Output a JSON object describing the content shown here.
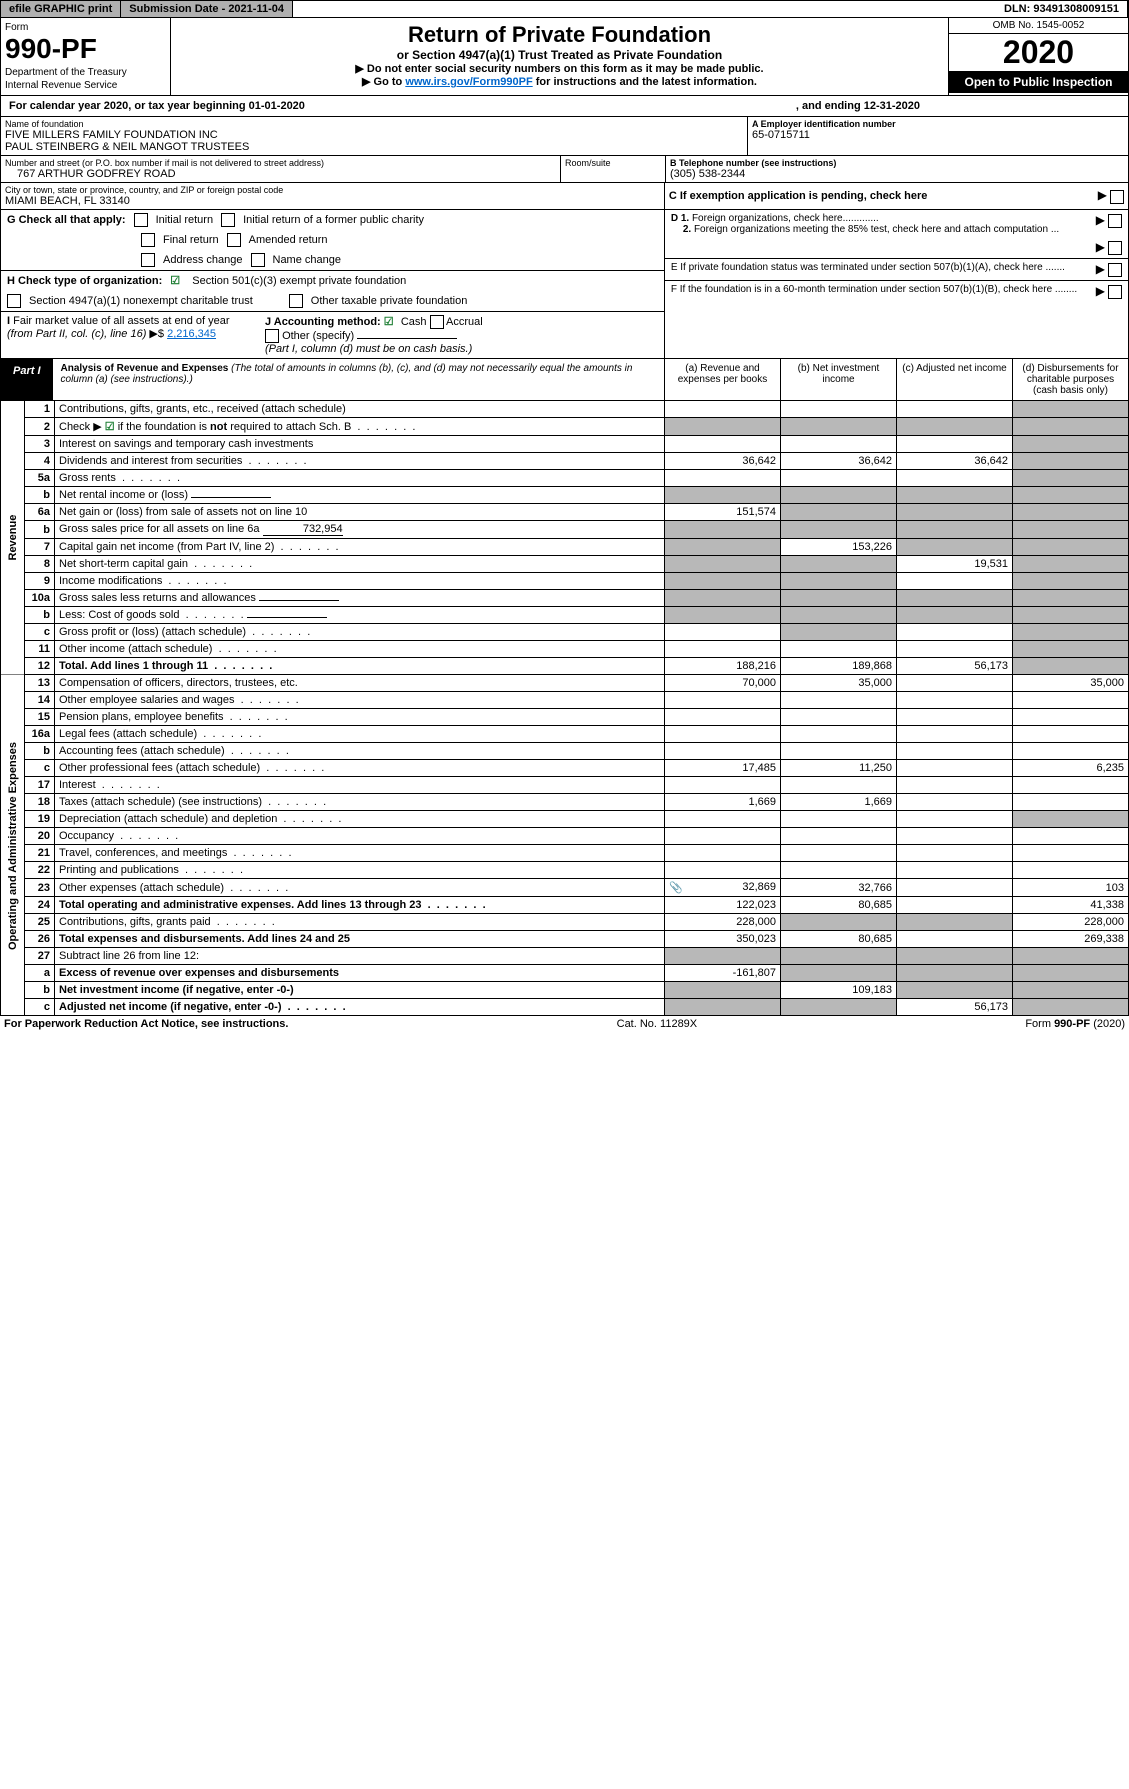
{
  "topbar": {
    "efile": "efile GRAPHIC print",
    "sub_label": "Submission Date - 2021-11-04",
    "dln": "DLN: 93491308009151"
  },
  "header": {
    "form_label": "Form",
    "form_num": "990-PF",
    "dept1": "Department of the Treasury",
    "dept2": "Internal Revenue Service",
    "title": "Return of Private Foundation",
    "subtitle": "or Section 4947(a)(1) Trust Treated as Private Foundation",
    "instruct1": "▶ Do not enter social security numbers on this form as it may be made public.",
    "instruct2a": "▶ Go to ",
    "instruct2_link": "www.irs.gov/Form990PF",
    "instruct2b": " for instructions and the latest information.",
    "omb": "OMB No. 1545-0052",
    "year": "2020",
    "inspection": "Open to Public Inspection"
  },
  "calendar": {
    "text1": "For calendar year 2020, or tax year beginning 01-01-2020",
    "text2": ", and ending 12-31-2020"
  },
  "name": {
    "label": "Name of foundation",
    "line1": "FIVE MILLERS FAMILY FOUNDATION INC",
    "line2": "PAUL STEINBERG & NEIL MANGOT TRUSTEES"
  },
  "ein": {
    "label": "A Employer identification number",
    "value": "65-0715711"
  },
  "addr": {
    "label": "Number and street (or P.O. box number if mail is not delivered to street address)",
    "room_label": "Room/suite",
    "value": "767 ARTHUR GODFREY ROAD"
  },
  "tel": {
    "label": "B Telephone number (see instructions)",
    "value": "(305) 538-2344"
  },
  "city": {
    "label": "City or town, state or province, country, and ZIP or foreign postal code",
    "value": "MIAMI BEACH, FL  33140"
  },
  "pending": {
    "label": "C If exemption application is pending, check here"
  },
  "g": {
    "label": "G Check all that apply:",
    "initial": "Initial return",
    "initial_former": "Initial return of a former public charity",
    "final": "Final return",
    "amended": "Amended return",
    "address": "Address change",
    "name_change": "Name change"
  },
  "h": {
    "label": "H Check type of organization:",
    "s501c3": "Section 501(c)(3) exempt private foundation",
    "s4947": "Section 4947(a)(1) nonexempt charitable trust",
    "other_tax": "Other taxable private foundation"
  },
  "i": {
    "label": "I Fair market value of all assets at end of year (from Part II, col. (c), line 16) ▶$",
    "value": "2,216,345"
  },
  "j": {
    "label": "J Accounting method:",
    "cash": "Cash",
    "accrual": "Accrual",
    "other": "Other (specify)",
    "note": "(Part I, column (d) must be on cash basis.)"
  },
  "d": {
    "d1": "D 1. Foreign organizations, check here.............",
    "d2": "2. Foreign organizations meeting the 85% test, check here and attach computation ..."
  },
  "e": {
    "label": "E  If private foundation status was terminated under section 507(b)(1)(A), check here ......."
  },
  "f": {
    "label": "F  If the foundation is in a 60-month termination under section 507(b)(1)(B), check here ........"
  },
  "part1": {
    "tab": "Part I",
    "title": "Analysis of Revenue and Expenses",
    "note": "(The total of amounts in columns (b), (c), and (d) may not necessarily equal the amounts in column (a) (see instructions).)",
    "col_a": "(a)   Revenue and expenses per books",
    "col_b": "(b)   Net investment income",
    "col_c": "(c)   Adjusted net income",
    "col_d": "(d)   Disbursements for charitable purposes (cash basis only)"
  },
  "side": {
    "revenue": "Revenue",
    "expenses": "Operating and Administrative Expenses"
  },
  "rows": [
    {
      "n": "1",
      "d": "Contributions, gifts, grants, etc., received (attach schedule)",
      "a": "",
      "b": "",
      "c": "",
      "dd": "",
      "shade": [
        "dd"
      ]
    },
    {
      "n": "2",
      "d": "Check ▶ ☑ if the foundation is not required to attach Sch. B",
      "dots": true,
      "a": "",
      "b": "",
      "c": "",
      "dd": "",
      "shade": [
        "a",
        "b",
        "c",
        "dd"
      ],
      "checked": true
    },
    {
      "n": "3",
      "d": "Interest on savings and temporary cash investments",
      "a": "",
      "b": "",
      "c": "",
      "dd": "",
      "shade": [
        "dd"
      ]
    },
    {
      "n": "4",
      "d": "Dividends and interest from securities",
      "dots": true,
      "a": "36,642",
      "b": "36,642",
      "c": "36,642",
      "dd": "",
      "shade": [
        "dd"
      ]
    },
    {
      "n": "5a",
      "d": "Gross rents",
      "dots": true,
      "a": "",
      "b": "",
      "c": "",
      "dd": "",
      "shade": [
        "dd"
      ]
    },
    {
      "n": "b",
      "d": "Net rental income or (loss)",
      "blank": true,
      "a": "",
      "b": "",
      "c": "",
      "dd": "",
      "shade": [
        "a",
        "b",
        "c",
        "dd"
      ]
    },
    {
      "n": "6a",
      "d": "Net gain or (loss) from sale of assets not on line 10",
      "a": "151,574",
      "b": "",
      "c": "",
      "dd": "",
      "shade": [
        "b",
        "c",
        "dd"
      ]
    },
    {
      "n": "b",
      "d": "Gross sales price for all assets on line 6a",
      "blank": true,
      "blank_val": "732,954",
      "a": "",
      "b": "",
      "c": "",
      "dd": "",
      "shade": [
        "a",
        "b",
        "c",
        "dd"
      ]
    },
    {
      "n": "7",
      "d": "Capital gain net income (from Part IV, line 2)",
      "dots": true,
      "a": "",
      "b": "153,226",
      "c": "",
      "dd": "",
      "shade": [
        "a",
        "c",
        "dd"
      ]
    },
    {
      "n": "8",
      "d": "Net short-term capital gain",
      "dots": true,
      "a": "",
      "b": "",
      "c": "19,531",
      "dd": "",
      "shade": [
        "a",
        "b",
        "dd"
      ]
    },
    {
      "n": "9",
      "d": "Income modifications",
      "dots": true,
      "a": "",
      "b": "",
      "c": "",
      "dd": "",
      "shade": [
        "a",
        "b",
        "dd"
      ]
    },
    {
      "n": "10a",
      "d": "Gross sales less returns and allowances",
      "blank": true,
      "a": "",
      "b": "",
      "c": "",
      "dd": "",
      "shade": [
        "a",
        "b",
        "c",
        "dd"
      ]
    },
    {
      "n": "b",
      "d": "Less: Cost of goods sold",
      "dots": true,
      "blank": true,
      "a": "",
      "b": "",
      "c": "",
      "dd": "",
      "shade": [
        "a",
        "b",
        "c",
        "dd"
      ]
    },
    {
      "n": "c",
      "d": "Gross profit or (loss) (attach schedule)",
      "dots": true,
      "a": "",
      "b": "",
      "c": "",
      "dd": "",
      "shade": [
        "b",
        "dd"
      ]
    },
    {
      "n": "11",
      "d": "Other income (attach schedule)",
      "dots": true,
      "a": "",
      "b": "",
      "c": "",
      "dd": "",
      "shade": [
        "dd"
      ]
    },
    {
      "n": "12",
      "d": "Total. Add lines 1 through 11",
      "dots": true,
      "bold": true,
      "a": "188,216",
      "b": "189,868",
      "c": "56,173",
      "dd": "",
      "shade": [
        "dd"
      ]
    }
  ],
  "exp_rows": [
    {
      "n": "13",
      "d": "Compensation of officers, directors, trustees, etc.",
      "a": "70,000",
      "b": "35,000",
      "c": "",
      "dd": "35,000"
    },
    {
      "n": "14",
      "d": "Other employee salaries and wages",
      "dots": true,
      "a": "",
      "b": "",
      "c": "",
      "dd": ""
    },
    {
      "n": "15",
      "d": "Pension plans, employee benefits",
      "dots": true,
      "a": "",
      "b": "",
      "c": "",
      "dd": ""
    },
    {
      "n": "16a",
      "d": "Legal fees (attach schedule)",
      "dots": true,
      "a": "",
      "b": "",
      "c": "",
      "dd": ""
    },
    {
      "n": "b",
      "d": "Accounting fees (attach schedule)",
      "dots": true,
      "a": "",
      "b": "",
      "c": "",
      "dd": ""
    },
    {
      "n": "c",
      "d": "Other professional fees (attach schedule)",
      "dots": true,
      "a": "17,485",
      "b": "11,250",
      "c": "",
      "dd": "6,235"
    },
    {
      "n": "17",
      "d": "Interest",
      "dots": true,
      "a": "",
      "b": "",
      "c": "",
      "dd": ""
    },
    {
      "n": "18",
      "d": "Taxes (attach schedule) (see instructions)",
      "dots": true,
      "a": "1,669",
      "b": "1,669",
      "c": "",
      "dd": ""
    },
    {
      "n": "19",
      "d": "Depreciation (attach schedule) and depletion",
      "dots": true,
      "a": "",
      "b": "",
      "c": "",
      "dd": "",
      "shade": [
        "dd"
      ]
    },
    {
      "n": "20",
      "d": "Occupancy",
      "dots": true,
      "a": "",
      "b": "",
      "c": "",
      "dd": ""
    },
    {
      "n": "21",
      "d": "Travel, conferences, and meetings",
      "dots": true,
      "a": "",
      "b": "",
      "c": "",
      "dd": ""
    },
    {
      "n": "22",
      "d": "Printing and publications",
      "dots": true,
      "a": "",
      "b": "",
      "c": "",
      "dd": ""
    },
    {
      "n": "23",
      "d": "Other expenses (attach schedule)",
      "dots": true,
      "attach": true,
      "a": "32,869",
      "b": "32,766",
      "c": "",
      "dd": "103"
    },
    {
      "n": "24",
      "d": "Total operating and administrative expenses. Add lines 13 through 23",
      "dots": true,
      "bold": true,
      "a": "122,023",
      "b": "80,685",
      "c": "",
      "dd": "41,338"
    },
    {
      "n": "25",
      "d": "Contributions, gifts, grants paid",
      "dots": true,
      "a": "228,000",
      "b": "",
      "c": "",
      "dd": "228,000",
      "shade": [
        "b",
        "c"
      ]
    },
    {
      "n": "26",
      "d": "Total expenses and disbursements. Add lines 24 and 25",
      "bold": true,
      "a": "350,023",
      "b": "80,685",
      "c": "",
      "dd": "269,338"
    },
    {
      "n": "27",
      "d": "Subtract line 26 from line 12:",
      "a": "",
      "b": "",
      "c": "",
      "dd": "",
      "shade": [
        "a",
        "b",
        "c",
        "dd"
      ]
    },
    {
      "n": "a",
      "d": "Excess of revenue over expenses and disbursements",
      "bold": true,
      "a": "-161,807",
      "b": "",
      "c": "",
      "dd": "",
      "shade": [
        "b",
        "c",
        "dd"
      ]
    },
    {
      "n": "b",
      "d": "Net investment income (if negative, enter -0-)",
      "bold": true,
      "a": "",
      "b": "109,183",
      "c": "",
      "dd": "",
      "shade": [
        "a",
        "c",
        "dd"
      ]
    },
    {
      "n": "c",
      "d": "Adjusted net income (if negative, enter -0-)",
      "dots": true,
      "bold": true,
      "a": "",
      "b": "",
      "c": "56,173",
      "dd": "",
      "shade": [
        "a",
        "b",
        "dd"
      ]
    }
  ],
  "footer": {
    "left": "For Paperwork Reduction Act Notice, see instructions.",
    "mid": "Cat. No. 11289X",
    "right": "Form 990-PF (2020)"
  },
  "colors": {
    "shade": "#b8b8b8",
    "link": "#0066cc",
    "check": "#1e7e34"
  }
}
